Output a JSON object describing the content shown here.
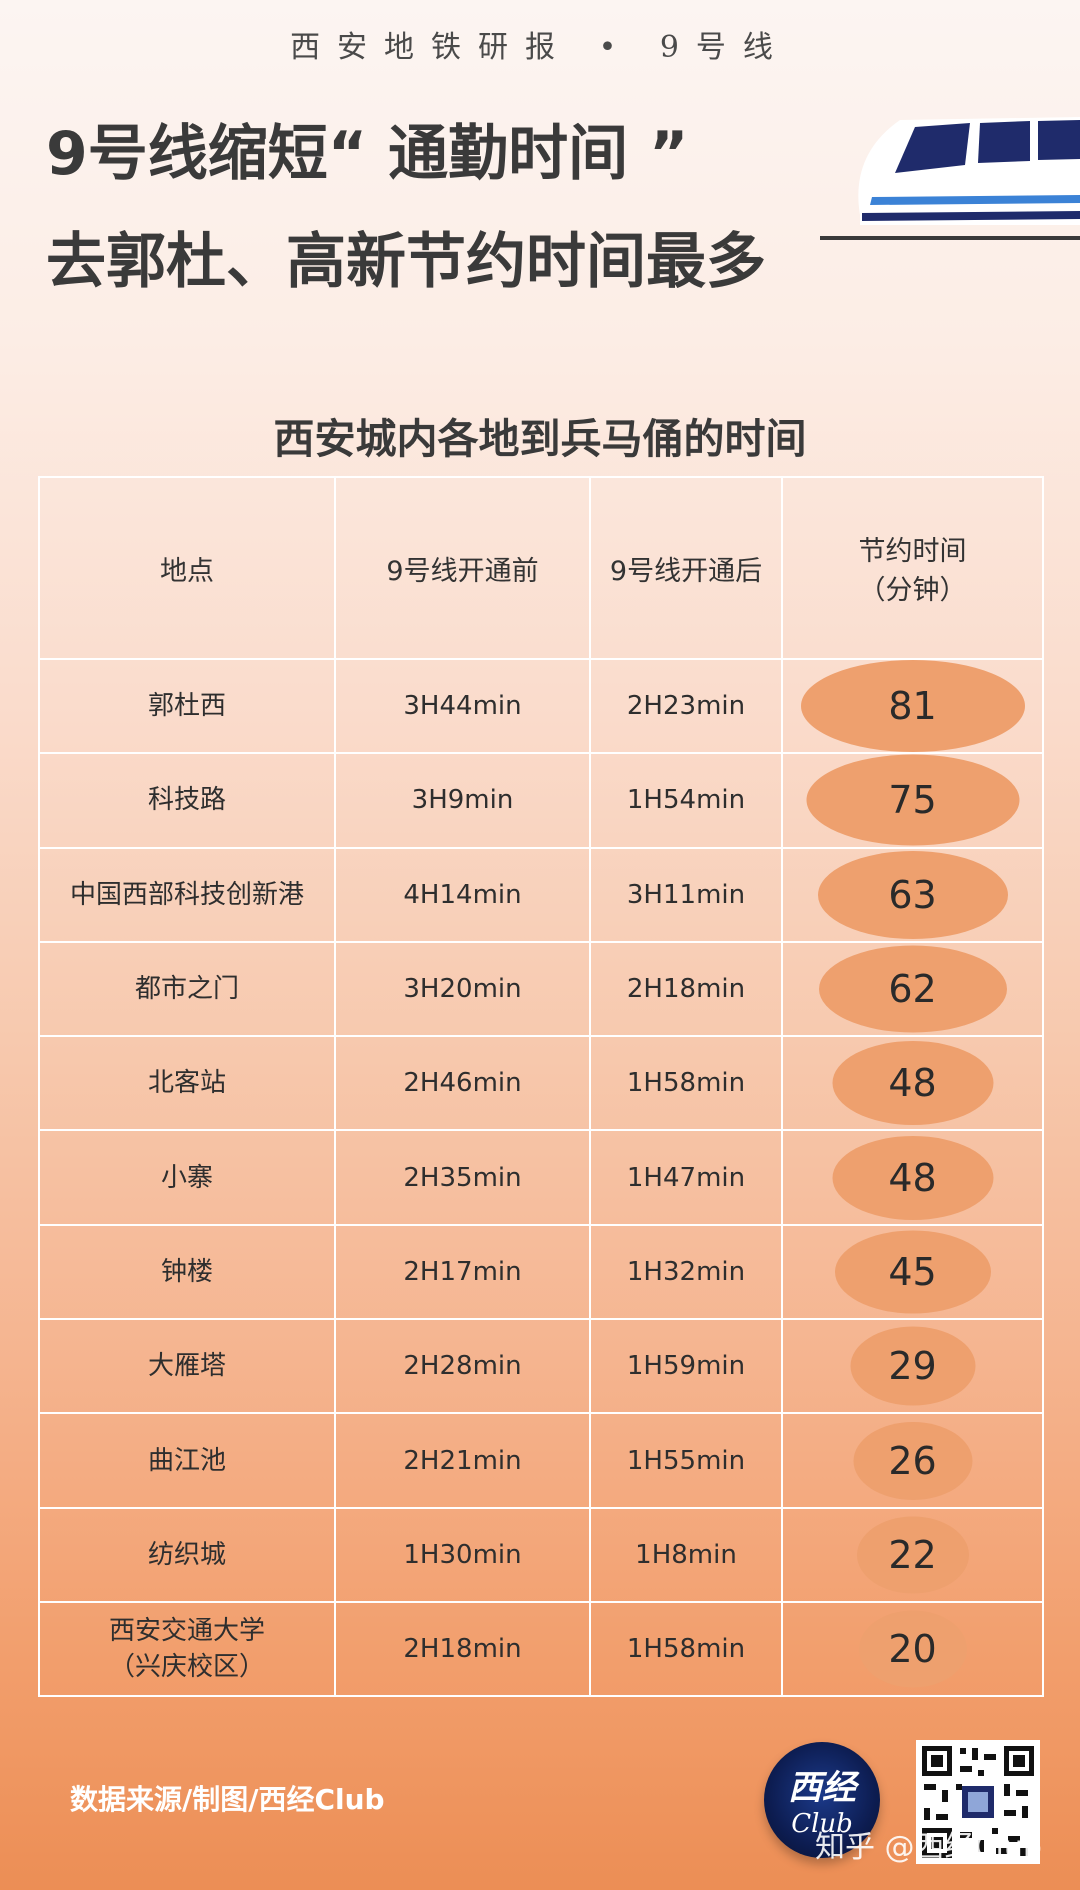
{
  "header": {
    "series": "西安地铁研报 • 9号线"
  },
  "headline": {
    "line1": "9号线缩短“ 通勤时间 ”",
    "line2": "去郭杜、高新节约时间最多"
  },
  "table": {
    "title": "西安城内各地到兵马俑的时间",
    "headers": {
      "location": "地点",
      "before": "9号线开通前",
      "after": "9号线开通后",
      "saved_line1": "节约时间",
      "saved_line2": "（分钟）"
    },
    "rows": [
      {
        "location_line1": "郭杜西",
        "location_line2": "",
        "before": "3H44min",
        "after": "2H23min",
        "saved": "81"
      },
      {
        "location_line1": "科技路",
        "location_line2": "",
        "before": "3H9min",
        "after": "1H54min",
        "saved": "75"
      },
      {
        "location_line1": "中国西部科技创新港",
        "location_line2": "",
        "before": "4H14min",
        "after": "3H11min",
        "saved": "63"
      },
      {
        "location_line1": "都市之门",
        "location_line2": "",
        "before": "3H20min",
        "after": "2H18min",
        "saved": "62"
      },
      {
        "location_line1": "北客站",
        "location_line2": "",
        "before": "2H46min",
        "after": "1H58min",
        "saved": "48"
      },
      {
        "location_line1": "小寨",
        "location_line2": "",
        "before": "2H35min",
        "after": "1H47min",
        "saved": "48"
      },
      {
        "location_line1": "钟楼",
        "location_line2": "",
        "before": "2H17min",
        "after": "1H32min",
        "saved": "45"
      },
      {
        "location_line1": "大雁塔",
        "location_line2": "",
        "before": "2H28min",
        "after": "1H59min",
        "saved": "29"
      },
      {
        "location_line1": "曲江池",
        "location_line2": "",
        "before": "2H21min",
        "after": "1H55min",
        "saved": "26"
      },
      {
        "location_line1": "纺织城",
        "location_line2": "",
        "before": "1H30min",
        "after": "1H8min",
        "saved": "22"
      },
      {
        "location_line1": "西安交通大学",
        "location_line2": "（兴庆校区）",
        "before": "2H18min",
        "after": "1H58min",
        "saved": "20"
      }
    ]
  },
  "footer": {
    "source": "数据来源/制图/西经Club",
    "logo_top": "西经",
    "logo_bottom": "Club",
    "watermark": "知乎 @西经Club"
  },
  "colors": {
    "bubble": "#eea06e",
    "train_blue": "#1f2b6b",
    "train_accent": "#3b82d6"
  }
}
